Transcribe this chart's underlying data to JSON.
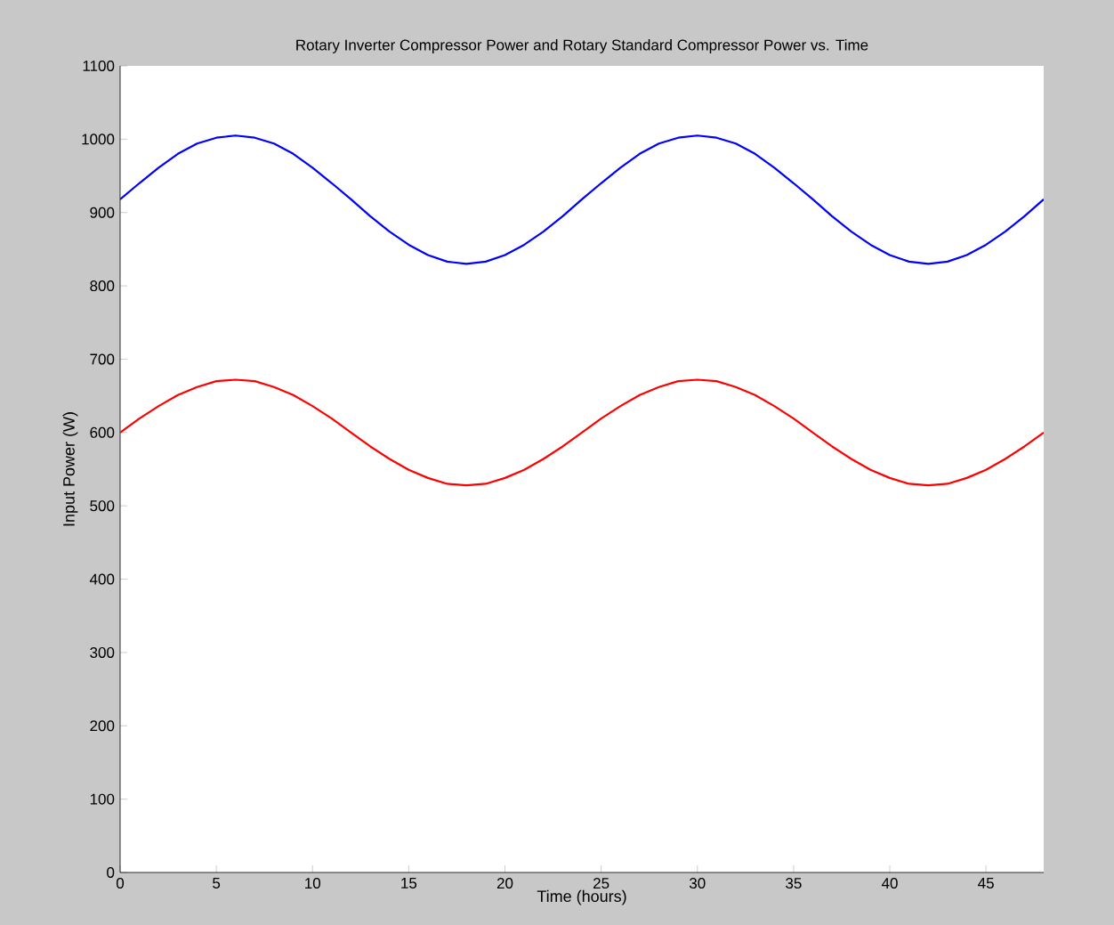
{
  "chart_data": {
    "type": "line",
    "title": "Rotary Inverter Compressor Power and Rotary Standard Compressor Power vs. Time",
    "xlabel": "Time (hours)",
    "ylabel": "Input Power (W)",
    "x": [
      0,
      1,
      2,
      3,
      4,
      5,
      6,
      7,
      8,
      9,
      10,
      11,
      12,
      13,
      14,
      15,
      16,
      17,
      18,
      19,
      20,
      21,
      22,
      23,
      24,
      25,
      26,
      27,
      28,
      29,
      30,
      31,
      32,
      33,
      34,
      35,
      36,
      37,
      38,
      39,
      40,
      41,
      42,
      43,
      44,
      45,
      46,
      47,
      48
    ],
    "series": [
      {
        "color": "#0000ff",
        "values": [
          918,
          940,
          961,
          980,
          994,
          1002,
          1005,
          1002,
          994,
          980,
          961,
          940,
          918,
          895,
          874,
          856,
          842,
          833,
          830,
          833,
          842,
          856,
          874,
          895,
          918,
          940,
          961,
          980,
          994,
          1002,
          1005,
          1002,
          994,
          980,
          961,
          940,
          918,
          895,
          874,
          856,
          842,
          833,
          830,
          833,
          842,
          856,
          874,
          895,
          918
        ]
      },
      {
        "color": "#ff0000",
        "values": [
          600,
          619,
          636,
          651,
          662,
          670,
          672,
          670,
          662,
          651,
          636,
          619,
          600,
          581,
          564,
          549,
          538,
          530,
          528,
          530,
          538,
          549,
          564,
          581,
          600,
          619,
          636,
          651,
          662,
          670,
          672,
          670,
          662,
          651,
          636,
          619,
          600,
          581,
          564,
          549,
          538,
          530,
          528,
          530,
          538,
          549,
          564,
          581,
          600
        ]
      }
    ],
    "xlim": [
      0,
      48
    ],
    "xticks": [
      0,
      5,
      10,
      15,
      20,
      25,
      30,
      35,
      40,
      45
    ],
    "ylim": [
      0,
      1100
    ],
    "yticks": [
      0,
      100,
      200,
      300,
      400,
      500,
      600,
      700,
      800,
      900,
      1000,
      1100
    ],
    "grid": false,
    "marker": "none",
    "line_style": "solid"
  }
}
